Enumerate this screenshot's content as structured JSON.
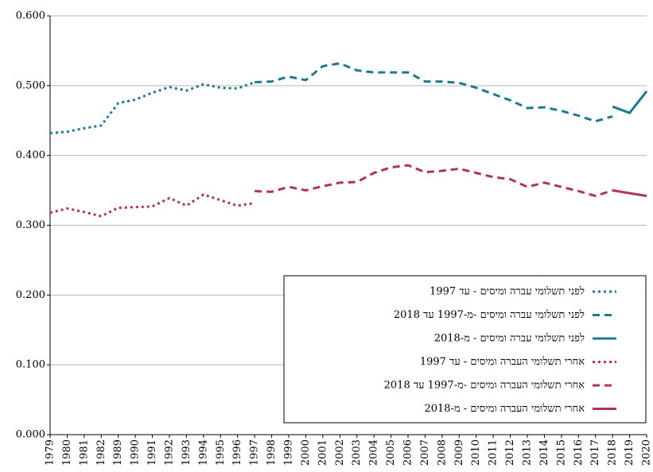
{
  "chart_data": {
    "type": "line",
    "categories": [
      "1979",
      "1980",
      "1981",
      "1982",
      "1989",
      "1990",
      "1991",
      "1992",
      "1993",
      "1994",
      "1995",
      "1996",
      "1997",
      "1998",
      "1999",
      "2000",
      "2001",
      "2002",
      "2003",
      "2004",
      "2005",
      "2006",
      "2007",
      "2008",
      "2009",
      "2010",
      "2011",
      "2012",
      "2013",
      "2014",
      "2015",
      "2016",
      "2017",
      "2018",
      "2019",
      "2020"
    ],
    "ylim": [
      0,
      0.6
    ],
    "yticks": [
      {
        "value": 0,
        "label": "0.000"
      },
      {
        "value": 0.1,
        "label": "0.100"
      },
      {
        "value": 0.2,
        "label": "0.200"
      },
      {
        "value": 0.3,
        "label": "0.300"
      },
      {
        "value": 0.4,
        "label": "0.400"
      },
      {
        "value": 0.5,
        "label": "0.500"
      },
      {
        "value": 0.6,
        "label": "0.600"
      }
    ],
    "grid": true,
    "legend": "lower right",
    "series": [
      {
        "name": "לפני תשלומי עברה ומיסים - עד 1997",
        "color": "#1b7b8e",
        "style": "dotted",
        "values": [
          0.432,
          0.434,
          0.439,
          0.443,
          0.475,
          0.48,
          0.49,
          0.498,
          0.493,
          0.502,
          0.497,
          0.496,
          0.505,
          null,
          null,
          null,
          null,
          null,
          null,
          null,
          null,
          null,
          null,
          null,
          null,
          null,
          null,
          null,
          null,
          null,
          null,
          null,
          null,
          null,
          null,
          null
        ]
      },
      {
        "name": "לפני תשלומי עברה ומיסים -מ-1997 עד 2018",
        "color": "#1b7b8e",
        "style": "dashed",
        "values": [
          null,
          null,
          null,
          null,
          null,
          null,
          null,
          null,
          null,
          null,
          null,
          null,
          0.505,
          0.506,
          0.513,
          0.508,
          0.528,
          0.532,
          0.522,
          0.519,
          0.519,
          0.519,
          0.506,
          0.506,
          0.504,
          0.497,
          0.488,
          0.479,
          0.468,
          0.469,
          0.464,
          0.457,
          0.449,
          0.456,
          null,
          null
        ]
      },
      {
        "name": "לפני תשלומי עברה ומיסים - מ-2018",
        "color": "#1b7b8e",
        "style": "solid",
        "values": [
          null,
          null,
          null,
          null,
          null,
          null,
          null,
          null,
          null,
          null,
          null,
          null,
          null,
          null,
          null,
          null,
          null,
          null,
          null,
          null,
          null,
          null,
          null,
          null,
          null,
          null,
          null,
          null,
          null,
          null,
          null,
          null,
          null,
          0.47,
          0.461,
          0.492
        ]
      },
      {
        "name": "אחרי תשלומי  העברה ומיסים - עד 1997",
        "color": "#b0325f",
        "style": "dotted",
        "values": [
          0.318,
          0.324,
          0.319,
          0.313,
          0.325,
          0.326,
          0.327,
          0.339,
          0.328,
          0.344,
          0.336,
          0.328,
          0.332,
          null,
          null,
          null,
          null,
          null,
          null,
          null,
          null,
          null,
          null,
          null,
          null,
          null,
          null,
          null,
          null,
          null,
          null,
          null,
          null,
          null,
          null,
          null
        ]
      },
      {
        "name": "אחרי תשלומי  העברה ומיסים -מ-1997 עד 2018",
        "color": "#b0325f",
        "style": "dashed",
        "values": [
          null,
          null,
          null,
          null,
          null,
          null,
          null,
          null,
          null,
          null,
          null,
          null,
          0.349,
          0.348,
          0.355,
          0.35,
          0.356,
          0.361,
          0.362,
          0.375,
          0.383,
          0.386,
          0.376,
          0.378,
          0.381,
          0.375,
          0.369,
          0.366,
          0.355,
          0.361,
          0.355,
          0.349,
          0.342,
          0.35,
          null,
          null
        ]
      },
      {
        "name": "אחרי תשלומי  העברה ומיסים - מ-2018",
        "color": "#b0325f",
        "style": "solid",
        "values": [
          null,
          null,
          null,
          null,
          null,
          null,
          null,
          null,
          null,
          null,
          null,
          null,
          null,
          null,
          null,
          null,
          null,
          null,
          null,
          null,
          null,
          null,
          null,
          null,
          null,
          null,
          null,
          null,
          null,
          null,
          null,
          null,
          null,
          0.35,
          0.346,
          0.342
        ]
      }
    ]
  }
}
